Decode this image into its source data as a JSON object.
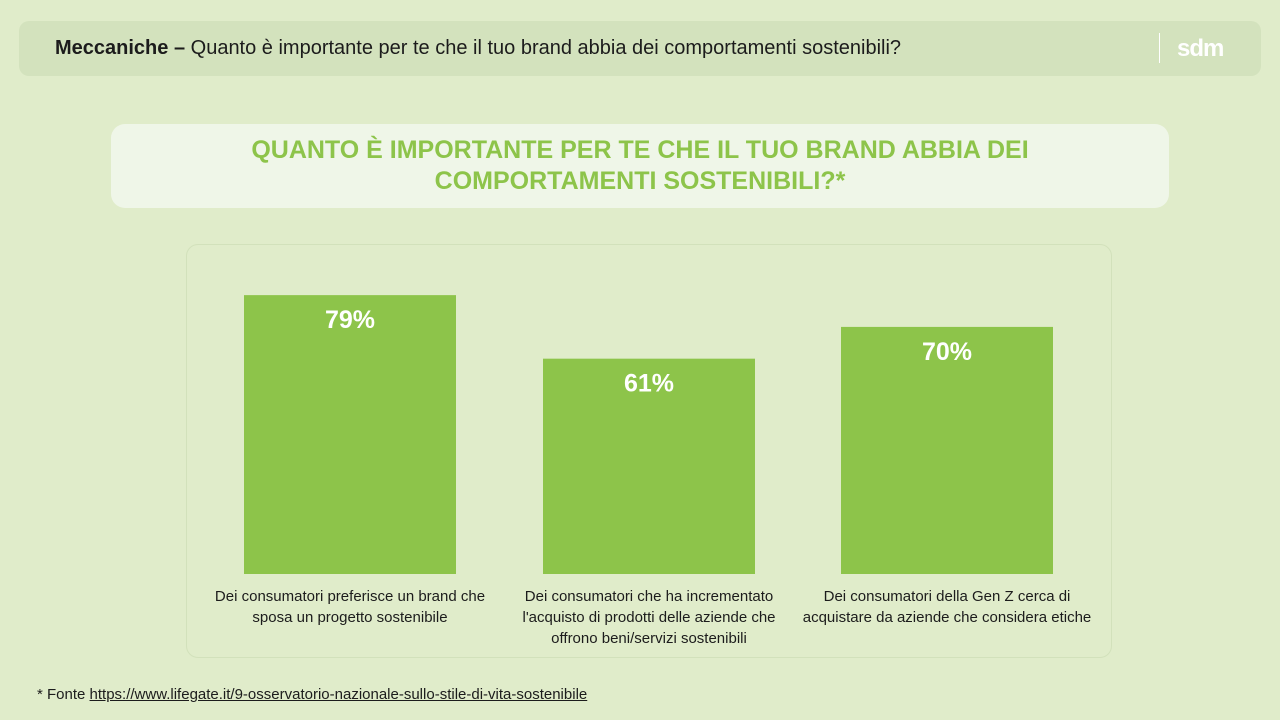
{
  "header": {
    "title_bold": "Meccaniche –",
    "title_rest": " Quanto è importante per te che il tuo brand abbia dei comportamenti sostenibili?",
    "logo_text": "sdm"
  },
  "chart_data": {
    "type": "bar",
    "title": "QUANTO È IMPORTANTE PER TE CHE IL TUO BRAND ABBIA DEI COMPORTAMENTI SOSTENIBILI?*",
    "categories": [
      "Dei consumatori preferisce un brand che sposa un progetto sostenibile",
      "Dei consumatori che ha incrementato l'acquisto di prodotti delle aziende che offrono beni/servizi sostenibili",
      "Dei consumatori della Gen Z cerca di acquistare da aziende che considera etiche"
    ],
    "values": [
      79,
      61,
      70
    ],
    "value_labels": [
      "79%",
      "61%",
      "70%"
    ],
    "ylim": [
      0,
      100
    ],
    "xlabel": "",
    "ylabel": "",
    "grid": false,
    "bar_color": "#8dc44a",
    "title_color": "#8dc44a"
  },
  "footnote": {
    "prefix": "* Fonte ",
    "link_text": "https://www.lifegate.it/9-osservatorio-nazionale-sullo-stile-di-vita-sostenibile"
  }
}
